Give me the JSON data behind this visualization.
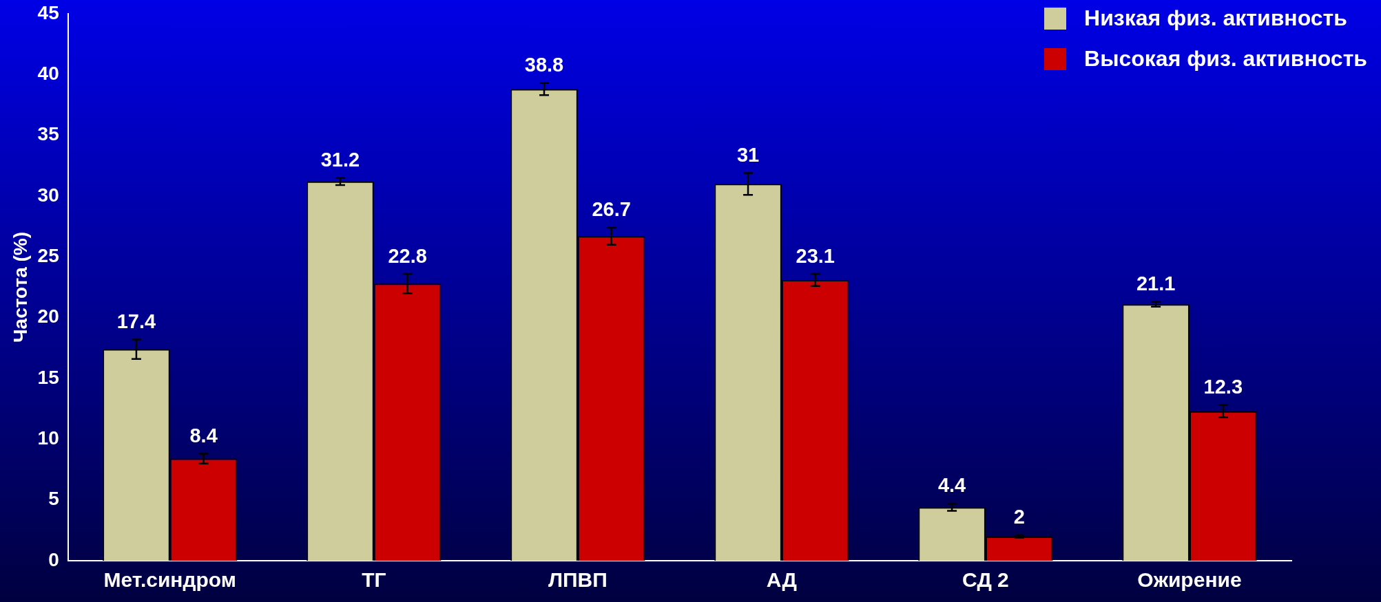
{
  "chart_data": {
    "type": "bar",
    "ylabel": "Частота (%)",
    "categories": [
      "Мет.синдром",
      "ТГ",
      "ЛПВП",
      "АД",
      "СД 2",
      "Ожирение"
    ],
    "series": [
      {
        "name": "Низкая физ. активность",
        "color": "#cfcd9c",
        "values": [
          17.4,
          31.2,
          38.8,
          31,
          4.4,
          21.1
        ],
        "errors": [
          0.8,
          0.3,
          0.5,
          0.9,
          0.3,
          0.2
        ]
      },
      {
        "name": "Высокая физ. активность",
        "color": "#cc0000",
        "values": [
          8.4,
          22.8,
          26.7,
          23.1,
          2,
          12.3
        ],
        "errors": [
          0.4,
          0.8,
          0.7,
          0.5,
          0.1,
          0.5
        ]
      }
    ],
    "ylim": [
      0,
      45
    ],
    "yticks": [
      0,
      5,
      10,
      15,
      20,
      25,
      30,
      35,
      40,
      45
    ],
    "data_labels": true,
    "legend": "top right"
  }
}
